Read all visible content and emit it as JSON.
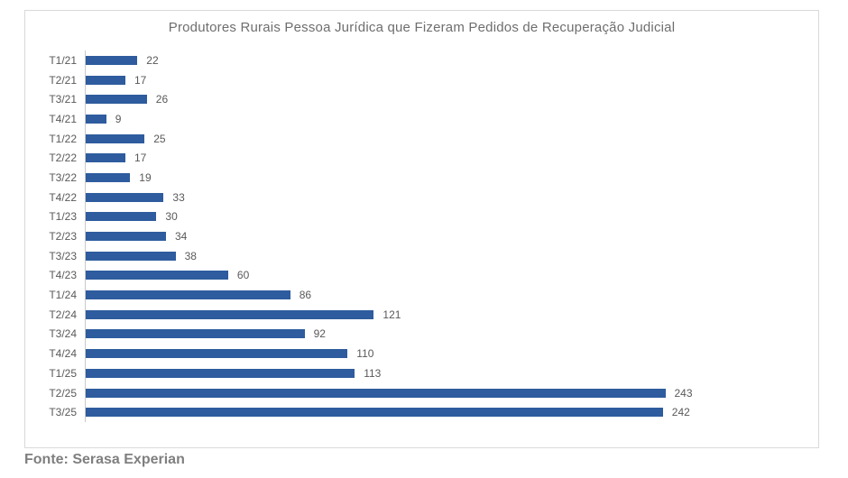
{
  "chart_data": {
    "type": "bar",
    "orientation": "horizontal",
    "title": "Produtores Rurais Pessoa Jurídica que Fizeram Pedidos de Recuperação Judicial",
    "categories": [
      "T1/21",
      "T2/21",
      "T3/21",
      "T4/21",
      "T1/22",
      "T2/22",
      "T3/22",
      "T4/22",
      "T1/23",
      "T2/23",
      "T3/23",
      "T4/23",
      "T1/24",
      "T2/24",
      "T3/24",
      "T4/24",
      "T1/25",
      "T2/25",
      "T3/25"
    ],
    "values": [
      22,
      17,
      26,
      9,
      25,
      17,
      19,
      33,
      30,
      34,
      38,
      60,
      86,
      121,
      92,
      110,
      113,
      243,
      242
    ],
    "xlabel": "",
    "ylabel": "",
    "xlim": [
      0,
      250
    ],
    "grid": false,
    "legend": false,
    "value_labels": true,
    "bar_color": "#2e5c9e"
  },
  "footer": {
    "source": "Fonte: Serasa Experian"
  },
  "colors": {
    "bar": "#2e5c9e",
    "title_text": "#6e6e6e",
    "axis_labels": "#595959",
    "frame_border": "#d9d9d9",
    "source_text": "#7f7f7f"
  }
}
